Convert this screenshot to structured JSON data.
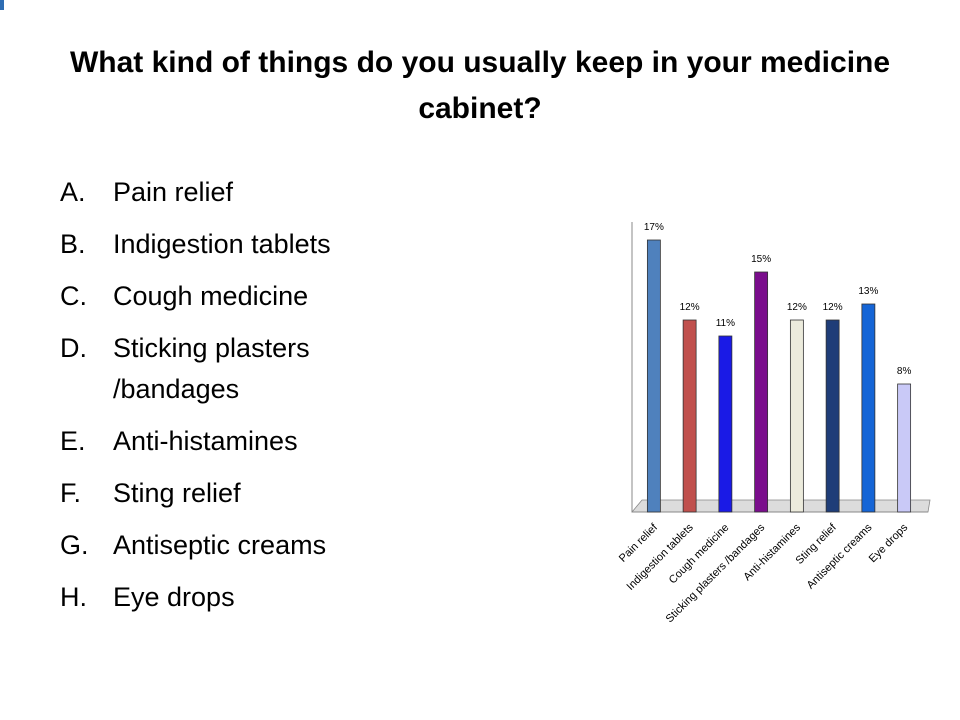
{
  "title": "What kind of things do you usually keep in your medicine cabinet?",
  "list": [
    {
      "letter": "A.",
      "text": "Pain relief"
    },
    {
      "letter": "B.",
      "text": "Indigestion tablets"
    },
    {
      "letter": "C.",
      "text": "Cough medicine"
    },
    {
      "letter": "D.",
      "text": "Sticking plasters /bandages"
    },
    {
      "letter": "E.",
      "text": "Anti-histamines"
    },
    {
      "letter": "F.",
      "text": "Sting relief"
    },
    {
      "letter": "G.",
      "text": "Antiseptic creams"
    },
    {
      "letter": "H.",
      "text": "Eye drops"
    }
  ],
  "chart_data": {
    "type": "bar",
    "categories": [
      "Pain relief",
      "Indigestion tablets",
      "Cough medicine",
      "Sticking plasters /bandages",
      "Anti-histamines",
      "Sting relief",
      "Antiseptic creams",
      "Eye drops"
    ],
    "values": [
      17,
      12,
      11,
      15,
      12,
      12,
      13,
      8
    ],
    "value_labels": [
      "17%",
      "12%",
      "11%",
      "15%",
      "12%",
      "12%",
      "13%",
      "8%"
    ],
    "colors": [
      "#4f81bd",
      "#c0504d",
      "#1a1ae6",
      "#7a0d8c",
      "#ecebdc",
      "#1f3d78",
      "#1565d6",
      "#c9c9f7"
    ],
    "grid": false
  }
}
